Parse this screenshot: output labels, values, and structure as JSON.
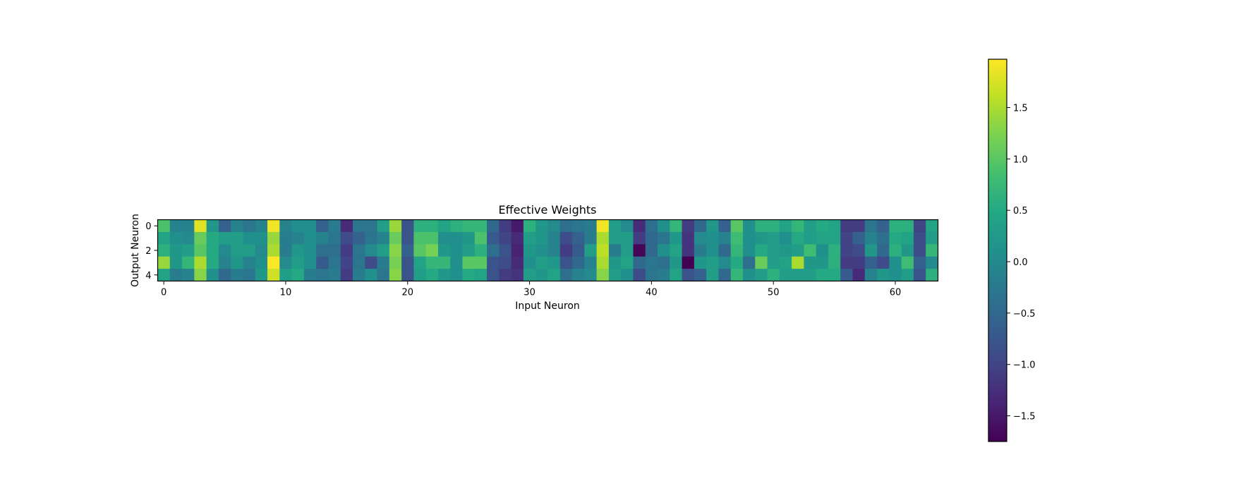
{
  "chart_data": {
    "type": "heatmap",
    "title": "Effective Weights",
    "xlabel": "Input Neuron",
    "ylabel": "Output Neuron",
    "x_ticks": [
      0,
      10,
      20,
      30,
      40,
      50,
      60
    ],
    "y_ticks": [
      0,
      2,
      4
    ],
    "n_rows": 5,
    "n_cols": 64,
    "colormap": "viridis",
    "colorbar": {
      "vmin": -1.75,
      "vmax": 1.97,
      "ticks": [
        1.5,
        1.0,
        0.5,
        0.0,
        -0.5,
        -1.0,
        -1.5
      ],
      "tick_labels": [
        "1.5",
        "1.0",
        "0.5",
        "0.0",
        "−0.5",
        "−1.0",
        "−1.5"
      ]
    },
    "values": [
      [
        0.9,
        -0.1,
        -0.1,
        1.8,
        0.2,
        -0.6,
        -0.1,
        -0.3,
        -0.1,
        1.9,
        -0.1,
        0.1,
        0.1,
        -0.6,
        -0.2,
        -1.3,
        -0.3,
        -0.3,
        0.3,
        1.4,
        -0.8,
        0.6,
        0.6,
        0.4,
        0.6,
        0.7,
        0.7,
        -0.5,
        -1.1,
        -1.5,
        0.6,
        0.2,
        0.0,
        -0.4,
        -0.3,
        -0.2,
        1.9,
        0.3,
        0.0,
        -1.3,
        -0.4,
        0.1,
        0.7,
        -1.1,
        -0.5,
        0.2,
        -0.6,
        1.0,
        0.1,
        0.6,
        0.6,
        0.4,
        0.7,
        0.3,
        0.5,
        0.4,
        -1.1,
        -1.1,
        -0.3,
        -0.6,
        0.6,
        0.6,
        -1.0,
        0.4
      ],
      [
        0.4,
        0.1,
        0.0,
        1.1,
        0.5,
        0.3,
        0.3,
        0.1,
        0.1,
        1.4,
        -0.2,
        -0.1,
        0.1,
        -0.1,
        -0.3,
        -0.9,
        -0.6,
        -0.3,
        -0.1,
        1.1,
        -0.8,
        0.9,
        0.9,
        0.1,
        0.1,
        0.2,
        0.9,
        -0.7,
        -1.0,
        -1.3,
        0.3,
        0.2,
        -0.1,
        -0.9,
        -0.6,
        -0.2,
        1.5,
        0.3,
        0.3,
        -1.1,
        -0.5,
        -0.3,
        0.2,
        -1.2,
        0.0,
        0.1,
        -0.1,
        0.8,
        0.1,
        0.2,
        0.3,
        0.1,
        0.5,
        0.3,
        0.4,
        0.4,
        -1.0,
        -0.6,
        -0.1,
        -0.4,
        0.5,
        0.4,
        -0.9,
        0.3
      ],
      [
        0.6,
        0.2,
        0.3,
        1.0,
        0.5,
        0.0,
        0.3,
        0.3,
        0.0,
        1.5,
        -0.2,
        0.2,
        0.1,
        -0.4,
        -0.4,
        -1.1,
        -0.3,
        0.0,
        0.3,
        1.3,
        -0.6,
        1.0,
        1.2,
        0.2,
        0.1,
        0.3,
        0.6,
        -0.4,
        -0.8,
        -1.4,
        0.2,
        0.1,
        -0.1,
        -1.1,
        -0.7,
        0.3,
        1.6,
        -0.2,
        0.3,
        -1.7,
        -0.5,
        0.1,
        0.4,
        -1.2,
        -0.2,
        0.1,
        -0.5,
        0.7,
        0.1,
        0.5,
        0.3,
        0.2,
        0.3,
        0.8,
        0.1,
        0.6,
        -1.0,
        -0.9,
        0.2,
        -0.5,
        0.6,
        0.2,
        -0.9,
        0.7
      ],
      [
        1.4,
        0.2,
        0.7,
        1.5,
        0.5,
        -0.1,
        0.2,
        -0.1,
        0.1,
        1.95,
        0.0,
        0.3,
        0.1,
        -0.7,
        -0.3,
        -1.0,
        -0.3,
        -0.9,
        -0.2,
        1.2,
        -0.8,
        0.4,
        0.7,
        0.7,
        0.1,
        1.0,
        1.0,
        -0.8,
        -0.9,
        -1.3,
        0.1,
        0.3,
        0.2,
        -0.8,
        -0.5,
        -0.1,
        1.5,
        0.2,
        0.4,
        -0.5,
        -0.3,
        -0.4,
        0.2,
        -1.75,
        0.2,
        0.3,
        0.0,
        0.5,
        -0.4,
        1.1,
        0.3,
        0.4,
        1.5,
        0.2,
        0.2,
        0.6,
        -1.1,
        -1.1,
        -0.6,
        -0.9,
        0.1,
        0.8,
        -0.6,
        0.0
      ],
      [
        0.4,
        -0.2,
        -0.1,
        1.3,
        0.1,
        -0.5,
        -0.2,
        -0.3,
        0.2,
        1.7,
        0.3,
        0.5,
        -0.2,
        -0.3,
        -0.2,
        -1.1,
        -0.2,
        0.1,
        -0.3,
        1.3,
        -0.8,
        0.3,
        0.5,
        0.2,
        0.1,
        0.5,
        0.4,
        -0.8,
        -1.1,
        -1.2,
        0.3,
        0.2,
        0.4,
        -0.4,
        -0.1,
        0.0,
        1.3,
        0.3,
        0.1,
        -0.9,
        -0.3,
        -0.2,
        0.4,
        -0.8,
        -0.6,
        0.3,
        -0.5,
        0.7,
        0.1,
        0.3,
        0.6,
        0.3,
        0.3,
        0.3,
        0.5,
        0.5,
        -0.7,
        -1.3,
        -0.1,
        0.2,
        0.1,
        0.3,
        -0.8,
        0.6
      ]
    ]
  }
}
